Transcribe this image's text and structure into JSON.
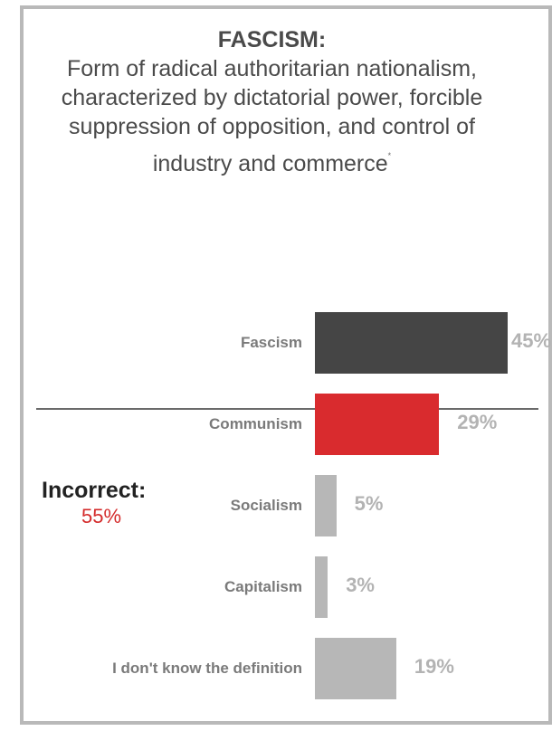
{
  "definition": {
    "term": "FASCISM:",
    "meaning": "Form of radical authoritarian nationalism, characterized by dictatorial power, forcible suppression of opposition, and control of industry and commerce",
    "footnote_mark": "*"
  },
  "incorrect": {
    "label": "Incorrect:",
    "value": "55%",
    "color": "#d42b2b"
  },
  "chart_data": {
    "type": "bar",
    "orientation": "horizontal",
    "categories": [
      "Fascism",
      "Communism",
      "Socialism",
      "Capitalism",
      "I don't know the definition"
    ],
    "values": [
      45,
      29,
      5,
      3,
      19
    ],
    "value_labels": [
      "45%",
      "29%",
      "5%",
      "3%",
      "19%"
    ],
    "colors": [
      "#454545",
      "#d92b2e",
      "#b7b7b7",
      "#b7b7b7",
      "#b7b7b7"
    ],
    "title": "",
    "xlabel": "",
    "ylabel": "",
    "xlim": [
      0,
      45
    ]
  }
}
